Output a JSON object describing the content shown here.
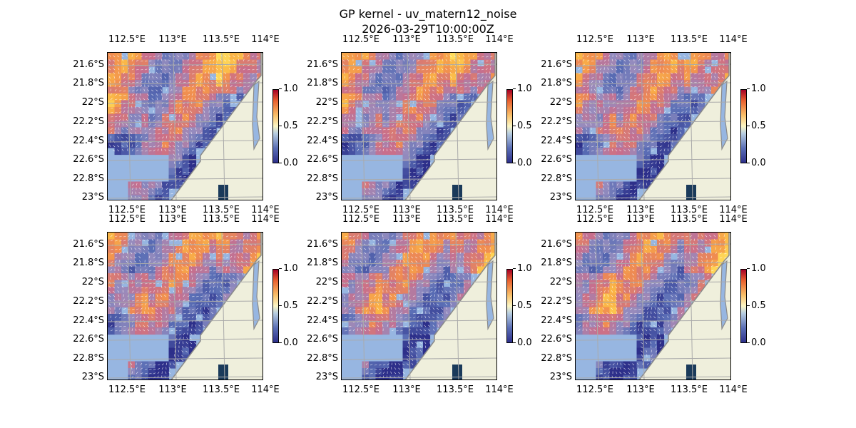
{
  "title": "GP kernel - uv_matern12_noise",
  "subtitle": "2026-03-29T10:00:00Z",
  "lon_ticks": [
    "112.5°E",
    "113°E",
    "113.5°E",
    "114°E"
  ],
  "lat_ticks": [
    "21.6°S",
    "21.8°S",
    "22°S",
    "22.2°S",
    "22.4°S",
    "22.6°S",
    "22.8°S",
    "23°S"
  ],
  "colorbar_ticks": [
    "0.0",
    "0.5",
    "1.0"
  ],
  "colors": {
    "ocean_nodata": "#97b6e1",
    "land": "#efefdc",
    "coast": "#8a8a8a",
    "grid": "#aaaaaa",
    "vectors": "#ffffff"
  },
  "panels": [
    {
      "row": 0,
      "col": 0
    },
    {
      "row": 0,
      "col": 1
    },
    {
      "row": 0,
      "col": 2
    },
    {
      "row": 1,
      "col": 0
    },
    {
      "row": 1,
      "col": 1
    },
    {
      "row": 1,
      "col": 2
    }
  ]
}
